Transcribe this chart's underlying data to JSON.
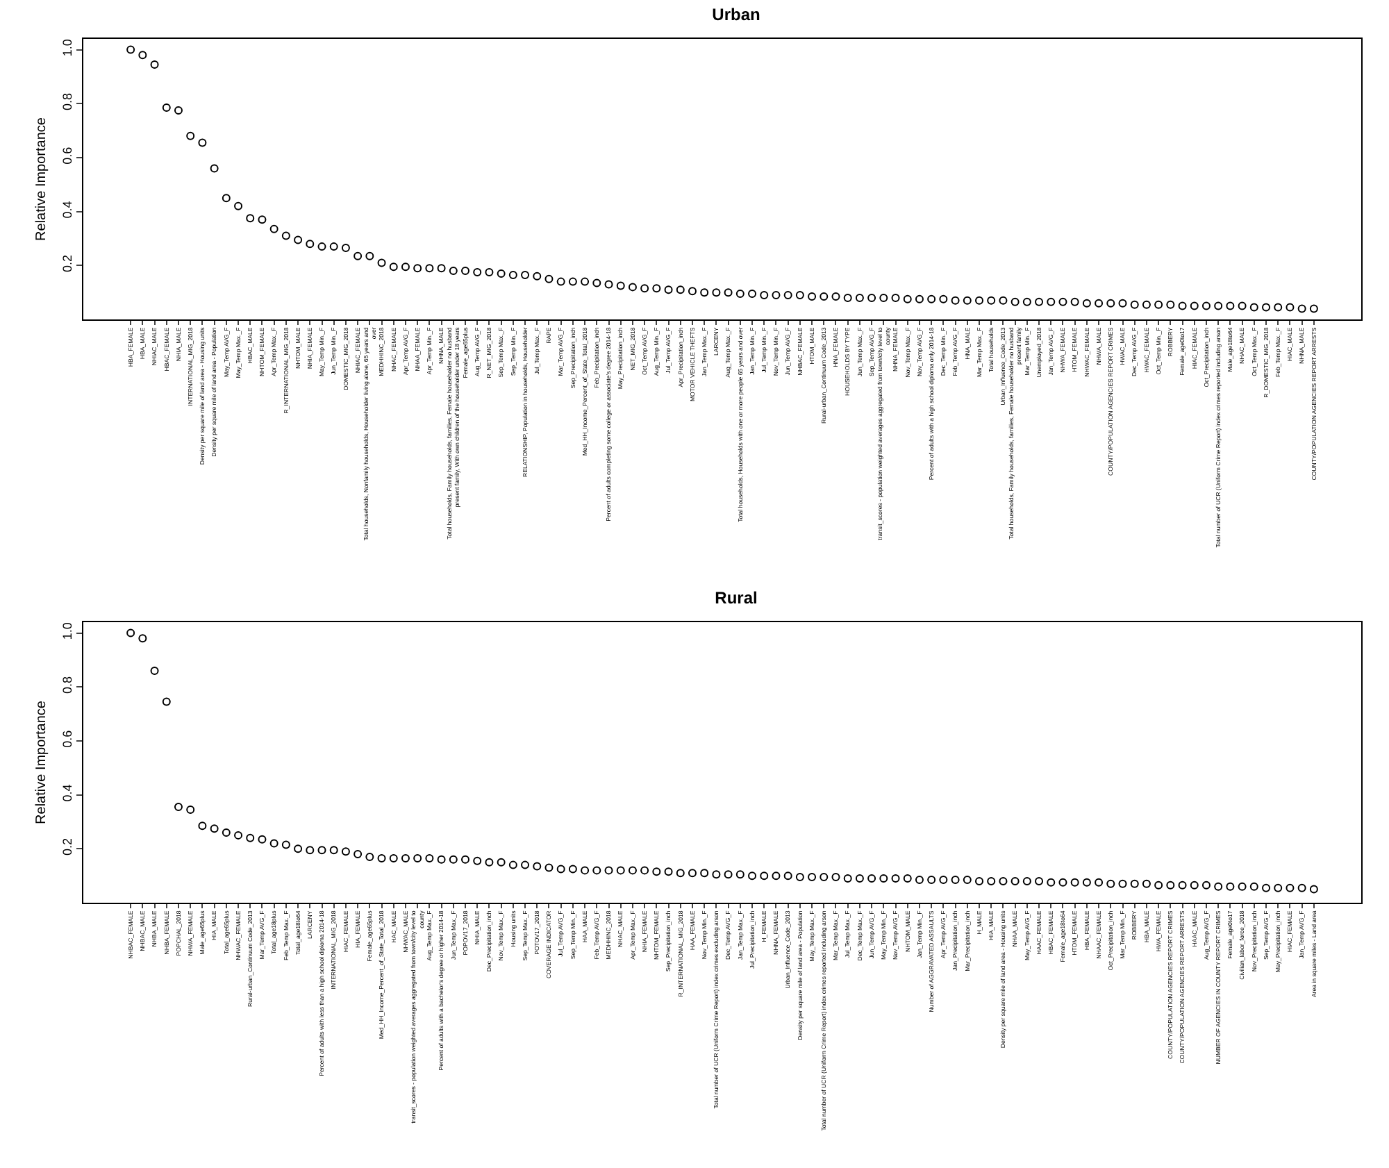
{
  "chart_data": [
    {
      "type": "scatter",
      "title": "Urban",
      "ylabel": "Relative Importance",
      "marker": "circle",
      "color": "#000000",
      "ylim": [
        0,
        1.04
      ],
      "yticks": [
        0.2,
        0.4,
        0.6,
        0.8,
        {
          "value": 1,
          "label": "1.0"
        }
      ],
      "categories": [
        "HBA_FEMALE",
        "HBA_MALE",
        "NHIAC_MALE",
        "HBAC_FEMALE",
        "NHIA_MALE",
        "INTERNATIONAL_MIG_2018",
        "Density per square mile of land area - Housing units",
        "Density per square mile of land area - Population",
        "May_Temp AVG_F",
        "May_Temp Max._F",
        "HBAC_MALE",
        "NHTOM_FEMALE",
        "Apr_Temp Max._F",
        "R_INTERNATIONAL_MIG_2018",
        "NHTOM_MALE",
        "NHIA_FEMALE",
        "May_Temp Min._F",
        "Jun_Temp Min._F",
        "DOMESTIC_MIG_2018",
        "NHIAC_FEMALE",
        "Total households, Nonfamily households, Householder living alone, 65 years and over",
        "MEDHHINC_2018",
        "NHAC_FEMALE",
        "Apr_Temp AVG_F",
        "NHAA_FEMALE",
        "Apr_Temp Min._F",
        "NHNA_MALE",
        "Total households, Family households, families, Female householder no husband present family, With own children of the householder under 18 years",
        "Female_age65plus",
        "Aug_Temp AVG_F",
        "R_NET_MIG_2018",
        "Sep_Temp Max._F",
        "Sep_Temp Min._F",
        "RELATIONSHIP, Population in households, Householder",
        "Jul_Temp Max._F",
        "RAPE",
        "Mar_Temp AVG_F",
        "Sep_Precipitation_inch",
        "Med_HH_Income_Percent_of_State_Total_2018",
        "Feb_Precipitation_inch",
        "Percent of adults completing some college or associate's degree 2014-18",
        "May_Precipitation_inch",
        "NET_MIG_2018",
        "Oct_Temp AVG_F",
        "Aug_Temp Min._F",
        "Jul_Temp AVG_F",
        "Apr_Precipitation_inch",
        "MOTOR VEHICLE THEFTS",
        "Jan_Temp Max._F",
        "LARCENY",
        "Aug_Temp Max._F",
        "Total households, Households with one or more people 65 years and over",
        "Jan_Temp Min._F",
        "Jul_Temp Min._F",
        "Nov_Temp Min._F",
        "Jun_Temp AVG_F",
        "NHBAC_FEMALE",
        "HTOM_MALE",
        "Rural-urban_Continuum Code_2013",
        "HNA_FEMALE",
        "HOUSEHOLDS BY TYPE",
        "Jun_Temp Max._F",
        "Sep_Temp AVG_F",
        "transit_scores - population weighted averages aggregated from town/city level to county",
        "NHNA_FEMALE",
        "Nov_Temp Max._F",
        "Nov_Temp AVG_F",
        "Percent of adults with a high school diploma only 2014-18",
        "Dec_Temp Min._F",
        "Feb_Temp AVG_F",
        "HNA_MALE",
        "Mar_Temp Max._F",
        "Total households",
        "Urban_Influence_Code_2013",
        "Total households, Family households, families, Female householder no husband present family",
        "Mar_Temp Min._F",
        "Unemployed_2018",
        "Jan_Temp AVG_F",
        "NHWA_FEMALE",
        "HTOM_FEMALE",
        "NHWAC_FEMALE",
        "NHWA_MALE",
        "COUNTY/POPULATION AGENCIES REPORT CRIMES",
        "HWAC_MALE",
        "Dec_Temp AVG_F",
        "HWAC_FEMALE",
        "Oct_Temp Min._F",
        "ROBBERY",
        "Female_age0to17",
        "HIAC_FEMALE",
        "Oct_Precipitation_inch",
        "Total number of UCR (Uniform Crime Report) index crimes reported including arson",
        "Male_age18to64",
        "NHAC_MALE",
        "Oct_Temp Max._F",
        "R_DOMESTIC_MIG_2018",
        "Feb_Temp Max._F",
        "HIAC_MALE",
        "NHNA_MALE",
        "COUNTY/POPULATION AGENCIES REPORT ARRESTS"
      ],
      "values": [
        1.0,
        0.98,
        0.945,
        0.785,
        0.775,
        0.68,
        0.655,
        0.56,
        0.45,
        0.42,
        0.375,
        0.37,
        0.335,
        0.31,
        0.295,
        0.28,
        0.27,
        0.27,
        0.265,
        0.235,
        0.235,
        0.21,
        0.195,
        0.195,
        0.19,
        0.19,
        0.19,
        0.18,
        0.18,
        0.175,
        0.175,
        0.17,
        0.165,
        0.165,
        0.16,
        0.15,
        0.14,
        0.14,
        0.14,
        0.135,
        0.13,
        0.125,
        0.12,
        0.115,
        0.115,
        0.11,
        0.11,
        0.105,
        0.1,
        0.1,
        0.1,
        0.095,
        0.095,
        0.09,
        0.09,
        0.09,
        0.09,
        0.085,
        0.085,
        0.085,
        0.08,
        0.08,
        0.08,
        0.08,
        0.08,
        0.075,
        0.075,
        0.075,
        0.075,
        0.07,
        0.07,
        0.07,
        0.07,
        0.07,
        0.065,
        0.065,
        0.065,
        0.065,
        0.065,
        0.065,
        0.06,
        0.06,
        0.06,
        0.06,
        0.055,
        0.055,
        0.055,
        0.055,
        0.05,
        0.05,
        0.05,
        0.05,
        0.05,
        0.05,
        0.045,
        0.045,
        0.045,
        0.045,
        0.04,
        0.04
      ]
    },
    {
      "type": "scatter",
      "title": "Rural",
      "ylabel": "Relative Importance",
      "marker": "circle",
      "color": "#000000",
      "ylim": [
        0,
        1.04
      ],
      "yticks": [
        0.2,
        0.4,
        0.6,
        0.8,
        {
          "value": 1,
          "label": "1.0"
        }
      ],
      "categories": [
        "NHBAC_FEMALE",
        "NHBAC_MALE",
        "NHBA_MALE",
        "NHBA_FEMALE",
        "POPCHAL_2018",
        "NHWA_FEMALE",
        "Male_age65plus",
        "HIA_MALE",
        "Total_age65plus",
        "NHWAC_FEMALE",
        "Rural-urban_Continuum Code_2013",
        "Mar_Temp AVG_F",
        "Total_age18plus",
        "Feb_Temp Max._F",
        "Total_age18to64",
        "LARCENY",
        "Percent of adults with less than a high school diploma 2014-18",
        "INTERNATIONAL_MIG_2018",
        "HIAC_FEMALE",
        "HIA_FEMALE",
        "Female_age65plus",
        "Med_HH_Income_Percent_of_State_Total_2018",
        "HAC_MALE",
        "NHWAC_MALE",
        "transit_scores - population weighted averages aggregated from town/city level to county",
        "Aug_Temp Max._F",
        "Percent of adults with a bachelor's degree or higher 2014-18",
        "Jun_Temp Max._F",
        "POPOV17_2018",
        "NHIA_MALE",
        "Dec_Precipitation_inch",
        "Nov_Temp Max._F",
        "Housing units",
        "Sep_Temp Max._F",
        "POTOV17_2018",
        "COVERAGE INDICATOR",
        "Jul_Temp AVG_F",
        "Sep_Temp Min._F",
        "HAA_MALE",
        "Feb_Temp AVG_F",
        "MEDHHINC_2018",
        "NHAC_MALE",
        "Apr_Temp Max._F",
        "NHIA_FEMALE",
        "NHTOM_FEMALE",
        "Sep_Precipitation_inch",
        "R_INTERNATIONAL_MIG_2018",
        "HAA_FEMALE",
        "Nov_Temp Min._F",
        "Total number of UCR (Uniform Crime Report) index crimes excluding arson",
        "Dec_Temp AVG_F",
        "Jan_Temp Max._F",
        "Jul_Precipitation_inch",
        "H_FEMALE",
        "NHNA_FEMALE",
        "Urban_Influence_Code_2013",
        "Density per square mile of land area - Population",
        "May_Temp Max._F",
        "Total number of UCR (Uniform Crime Report) index crimes reported including arson",
        "Mar_Temp Max._F",
        "Jul_Temp Max._F",
        "Dec_Temp Max._F",
        "Jun_Temp AVG_F",
        "May_Temp Min._F",
        "Nov_Temp AVG_F",
        "NHTOM_MALE",
        "Jan_Temp Min._F",
        "Number of AGGRAVATED ASSAULTS",
        "Apr_Temp AVG_F",
        "Jan_Precipitation_inch",
        "Mar_Precipitation_inch",
        "H_MALE",
        "HIA_MALE",
        "Density per square mile of land area - Housing units",
        "NHAA_MALE",
        "May_Temp AVG_F",
        "HAAC_FEMALE",
        "HBAC_FEMALE",
        "Female_age18to64",
        "HTOM_FEMALE",
        "HBA_FEMALE",
        "NHAAC_FEMALE",
        "Oct_Precipitation_inch",
        "Mar_Temp Min._F",
        "ROBBERY",
        "HBA_MALE",
        "HWA_FEMALE",
        "COUNTY/POPULATION AGENCIES REPORT CRIMES",
        "COUNTY/POPULATION AGENCIES REPORT ARRESTS",
        "HAAC_MALE",
        "Aug_Temp AVG_F",
        "NUMBER OF AGENCIES IN COUNTY REPORT CRIMES",
        "Female_age0to17",
        "Civilian_labor_force_2018",
        "Nov_Precipitation_inch",
        "Sep_Temp AVG_F",
        "May_Precipitation_inch",
        "HIAC_FEMALE",
        "Jan_Temp AVG_F",
        "Area in square miles - Land area"
      ],
      "values": [
        1.0,
        0.98,
        0.86,
        0.745,
        0.355,
        0.345,
        0.285,
        0.275,
        0.26,
        0.25,
        0.24,
        0.235,
        0.22,
        0.215,
        0.2,
        0.195,
        0.195,
        0.195,
        0.19,
        0.18,
        0.17,
        0.165,
        0.165,
        0.165,
        0.165,
        0.165,
        0.16,
        0.16,
        0.16,
        0.155,
        0.15,
        0.15,
        0.14,
        0.14,
        0.135,
        0.13,
        0.125,
        0.125,
        0.12,
        0.12,
        0.12,
        0.12,
        0.12,
        0.12,
        0.115,
        0.115,
        0.11,
        0.11,
        0.11,
        0.105,
        0.105,
        0.105,
        0.1,
        0.1,
        0.1,
        0.1,
        0.095,
        0.095,
        0.095,
        0.095,
        0.09,
        0.09,
        0.09,
        0.09,
        0.09,
        0.09,
        0.085,
        0.085,
        0.085,
        0.085,
        0.085,
        0.08,
        0.08,
        0.08,
        0.08,
        0.08,
        0.08,
        0.075,
        0.075,
        0.075,
        0.075,
        0.075,
        0.07,
        0.07,
        0.07,
        0.07,
        0.065,
        0.065,
        0.065,
        0.065,
        0.065,
        0.06,
        0.06,
        0.06,
        0.06,
        0.055,
        0.055,
        0.055,
        0.055,
        0.05
      ]
    }
  ]
}
